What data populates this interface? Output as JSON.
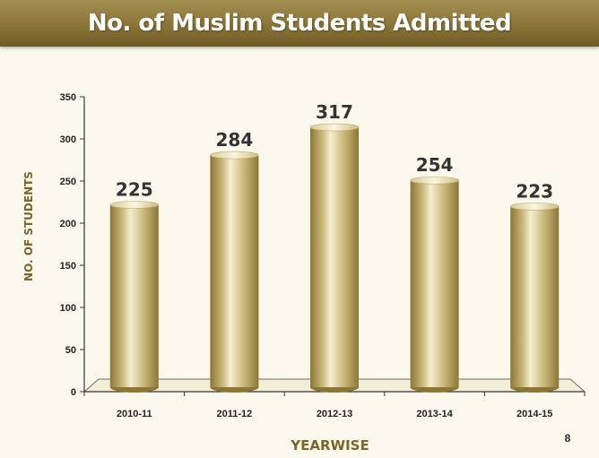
{
  "page": {
    "number": "8"
  },
  "chart_data": {
    "type": "bar",
    "title": "No. of Muslim Students Admitted",
    "xlabel": "YEARWISE",
    "ylabel": "NO. OF STUDENTS",
    "categories": [
      "2010-11",
      "2011-12",
      "2012-13",
      "2013-14",
      "2014-15"
    ],
    "values": [
      225,
      284,
      317,
      254,
      223
    ],
    "ylim": [
      0,
      350
    ],
    "yticks": [
      0,
      50,
      100,
      150,
      200,
      250,
      300,
      350
    ],
    "grid": false,
    "legend": "none",
    "bar_color": "#c9b77a",
    "bar_dark": "#8c7636",
    "bar_light": "#f5efcf"
  }
}
